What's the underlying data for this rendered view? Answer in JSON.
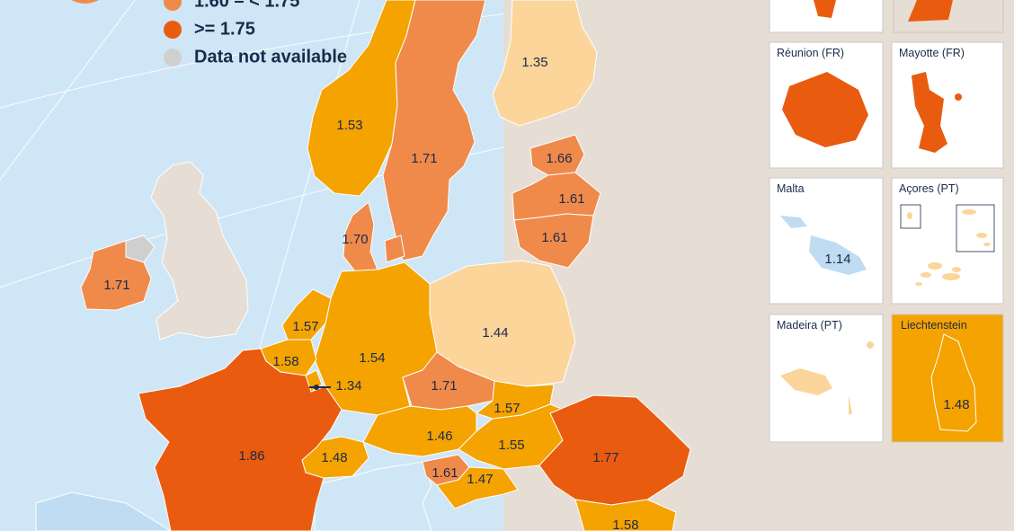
{
  "legend": {
    "items": [
      {
        "label": "1.60 – < 1.75",
        "color": "#f08a4b"
      },
      {
        "label": ">= 1.75",
        "color": "#e95c0f"
      },
      {
        "label": "Data not available",
        "color": "#cfcfcf"
      }
    ]
  },
  "regions": {
    "france": "1.86",
    "romania": "1.77",
    "sweden": "1.71",
    "ireland": "1.71",
    "czechia": "1.71",
    "denmark": "1.70",
    "estonia": "1.66",
    "latvia": "1.61",
    "lithuania": "1.61",
    "croatia": "1.61",
    "netherlands": "1.57",
    "slovakia": "1.57",
    "belgium": "1.58",
    "bulgaria": "1.58",
    "hungary": "1.55",
    "germany": "1.54",
    "norway": "1.53",
    "switzerland": "1.48",
    "slovenia": "1.47",
    "austria": "1.46",
    "poland": "1.44",
    "finland": "1.35",
    "luxembourg": "1.34"
  },
  "insets": {
    "reunion": {
      "title": "Réunion (FR)"
    },
    "mayotte": {
      "title": "Mayotte (FR)"
    },
    "malta": {
      "title": "Malta",
      "value": "1.14"
    },
    "azores": {
      "title": "Açores (PT)"
    },
    "madeira": {
      "title": "Madeira (PT)"
    },
    "liechtenstein": {
      "title": "Liechtenstein",
      "value": "1.48"
    }
  },
  "colors": {
    "sea": "#cfe6f6",
    "non_eu": "#e6ded4",
    "lt_1_50": "#fbd59a",
    "c_1_50_1_60": "#f4a300",
    "c_1_60_1_75": "#f08a4b",
    "ge_1_75": "#e95c0f",
    "no_data": "#cfcfcf",
    "malta_blue": "#bfdcf2",
    "text": "#1b2a4a"
  }
}
